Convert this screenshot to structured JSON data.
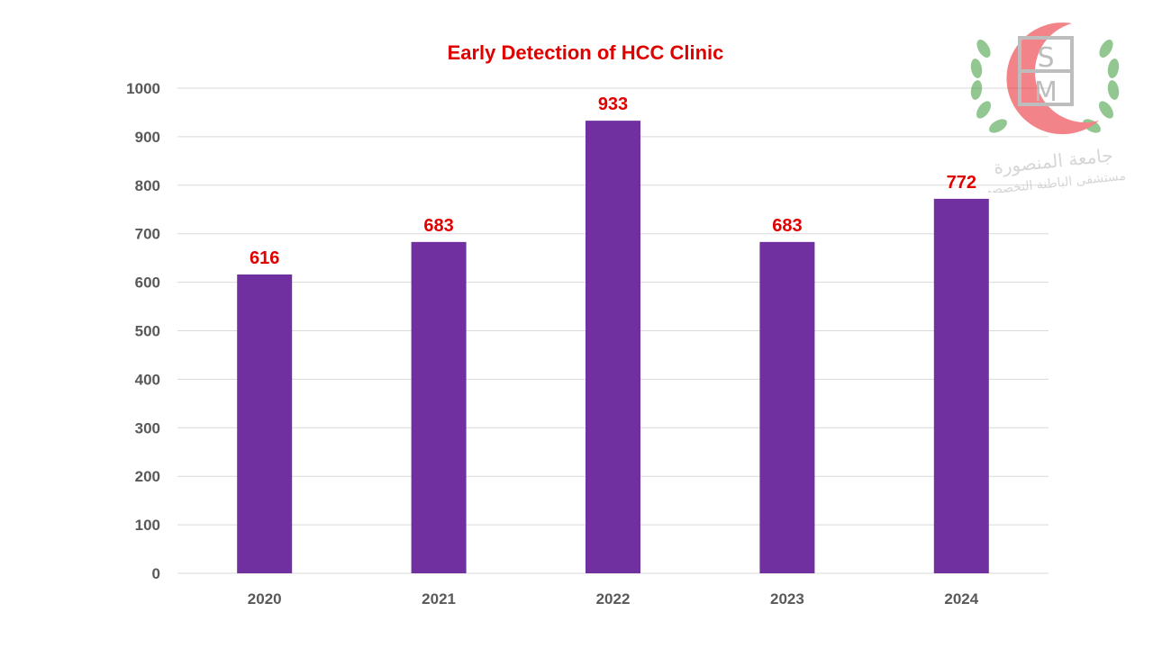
{
  "chart_data": {
    "type": "bar",
    "title": "Early Detection of HCC Clinic",
    "categories": [
      "2020",
      "2021",
      "2022",
      "2023",
      "2024"
    ],
    "values": [
      616,
      683,
      933,
      683,
      772
    ],
    "ylim": [
      0,
      1000
    ],
    "yticks": [
      0,
      100,
      200,
      300,
      400,
      500,
      600,
      700,
      800,
      900,
      1000
    ],
    "xlabel": "",
    "ylabel": "",
    "grid": true,
    "data_labels": true,
    "colors": {
      "bar": "#7030a0",
      "data_label": "#e00000",
      "title": "#e00000",
      "grid": "#d9d9d9",
      "tick": "#595959"
    }
  },
  "logo": {
    "letters": "MSH",
    "text_line_1": "جامعة المنصورة",
    "text_line_2": "مستشفى الباطنة التخصصي",
    "colors": {
      "crescent": "#e8202a",
      "wreath": "#3a9a3a",
      "letters": "#888888"
    }
  }
}
